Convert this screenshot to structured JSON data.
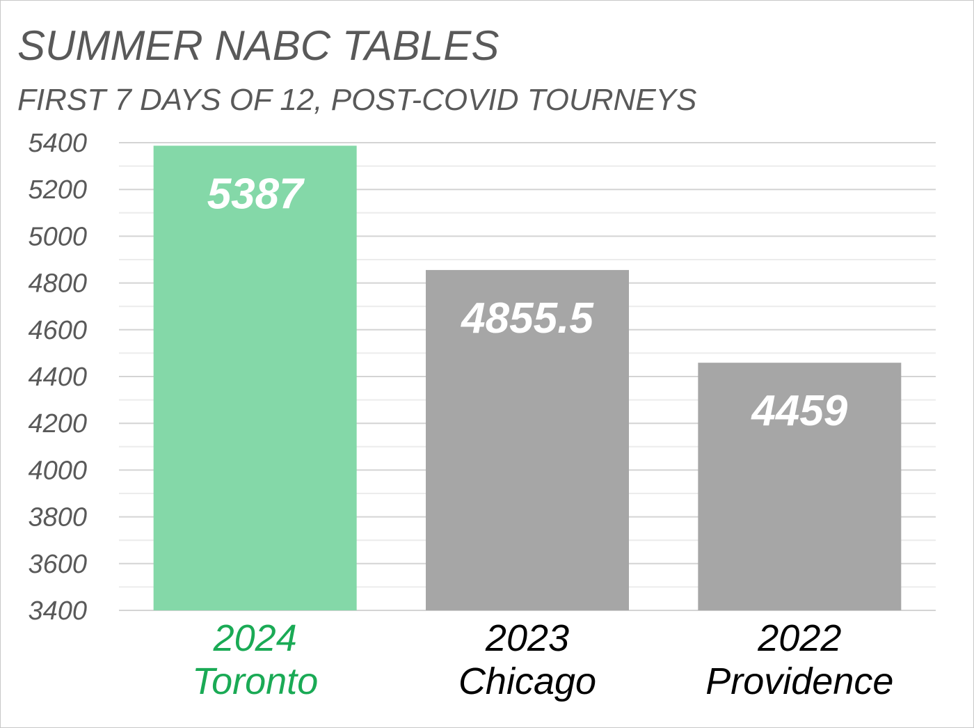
{
  "chart_data": {
    "type": "bar",
    "title": "SUMMER NABC TABLES",
    "subtitle": "FIRST 7 DAYS OF 12, POST-COVID TOURNEYS",
    "categories": [
      {
        "year": "2024",
        "city": "Toronto"
      },
      {
        "year": "2023",
        "city": "Chicago"
      },
      {
        "year": "2022",
        "city": "Providence"
      }
    ],
    "values": [
      5387,
      4855.5,
      4459
    ],
    "value_labels": [
      "5387",
      "4855.5",
      "4459"
    ],
    "bar_colors": [
      "#84d8a8",
      "#a6a6a6",
      "#a6a6a6"
    ],
    "category_label_colors": [
      "#1aaa55",
      "#000000",
      "#000000"
    ],
    "ylim": [
      3400,
      5400
    ],
    "yticks": [
      5400,
      5200,
      5000,
      4800,
      4600,
      4400,
      4200,
      4000,
      3800,
      3600,
      3400
    ],
    "major_gridlines": true,
    "minor_gridlines": true,
    "legend": "none",
    "xlabel": "",
    "ylabel": ""
  }
}
